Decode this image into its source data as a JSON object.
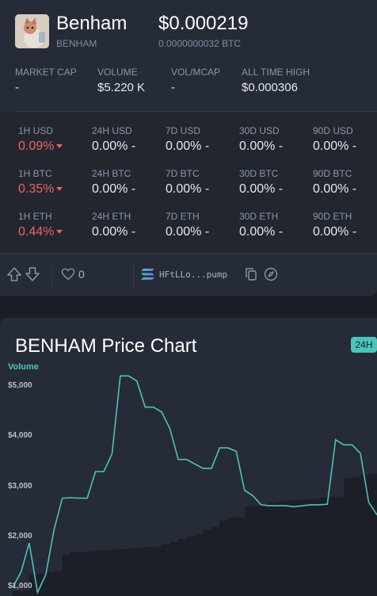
{
  "coin": {
    "name": "Benham",
    "symbol": "BENHAM",
    "price_usd": "$0.000219",
    "price_btc": "0.0000000032 BTC"
  },
  "stats": [
    {
      "label": "MARKET CAP",
      "value": "-"
    },
    {
      "label": "VOLUME",
      "value": "$5.220 K"
    },
    {
      "label": "VOL/MCAP",
      "value": "-"
    },
    {
      "label": "ALL TIME HIGH",
      "value": "$0.000306"
    }
  ],
  "changes": {
    "rows": [
      [
        {
          "label": "1H USD",
          "value": "0.09%",
          "color": "#f0625d",
          "down": true
        },
        {
          "label": "24H USD",
          "value": "0.00% -"
        },
        {
          "label": "7D USD",
          "value": "0.00% -"
        },
        {
          "label": "30D USD",
          "value": "0.00% -"
        },
        {
          "label": "90D USD",
          "value": "0.00% -"
        }
      ],
      [
        {
          "label": "1H BTC",
          "value": "0.35%",
          "color": "#f0625d",
          "down": true
        },
        {
          "label": "24H BTC",
          "value": "0.00% -"
        },
        {
          "label": "7D BTC",
          "value": "0.00% -"
        },
        {
          "label": "30D BTC",
          "value": "0.00% -"
        },
        {
          "label": "90D BTC",
          "value": "0.00% -"
        }
      ],
      [
        {
          "label": "1H ETH",
          "value": "0.44%",
          "color": "#f0625d",
          "down": true
        },
        {
          "label": "24H ETH",
          "value": "0.00% -"
        },
        {
          "label": "7D ETH",
          "value": "0.00% -"
        },
        {
          "label": "30D ETH",
          "value": "0.00% -"
        },
        {
          "label": "90D ETH",
          "value": "0.00% -"
        }
      ]
    ]
  },
  "toolbar": {
    "upvote_icon": "arrow-up-outline-icon",
    "downvote_icon": "arrow-down-outline-icon",
    "like_icon": "heart-outline-icon",
    "like_count": "0",
    "chain_icon": "solana-logo-icon",
    "contract_address": "HFtLLo...pump",
    "copy_icon": "copy-icon",
    "explorer_icon": "compass-icon"
  },
  "chart": {
    "title": "BENHAM Price Chart",
    "range_badge": "24H",
    "legend_label": "Volume",
    "accent_color": "#4cc3bb"
  },
  "chart_data": {
    "type": "line",
    "ylabel": "",
    "xlabel": "",
    "y_ticks": [
      "$5,000",
      "$4,000",
      "$3,000",
      "$2,000",
      "$1,000"
    ],
    "ylim": [
      1000,
      5000
    ],
    "series": [
      {
        "name": "Volume",
        "type": "line",
        "values": [
          1000,
          1300,
          1880,
          900,
          1250,
          2150,
          2770,
          2780,
          2770,
          2770,
          3300,
          3300,
          3650,
          5200,
          5200,
          5100,
          4580,
          4580,
          4480,
          4150,
          3540,
          3540,
          3450,
          3360,
          3360,
          3770,
          3770,
          3700,
          2930,
          2820,
          2640,
          2620,
          2620,
          2620,
          2600,
          2620,
          2640,
          2640,
          2650,
          3930,
          3830,
          3830,
          3660,
          2690,
          2440
        ]
      },
      {
        "name": "",
        "type": "area",
        "values": [
          930,
          930,
          1250,
          1270,
          1300,
          1320,
          1650,
          1700,
          1700,
          1720,
          1730,
          1740,
          1750,
          1760,
          1780,
          1790,
          1800,
          1810,
          1850,
          1900,
          1960,
          2010,
          2060,
          2150,
          2200,
          2330,
          2380,
          2390,
          2600,
          2620,
          2650,
          2680,
          2710,
          2730,
          2740,
          2740,
          2760,
          2780,
          2800,
          2800,
          3160,
          3180,
          3230,
          3250,
          3600
        ]
      }
    ]
  }
}
